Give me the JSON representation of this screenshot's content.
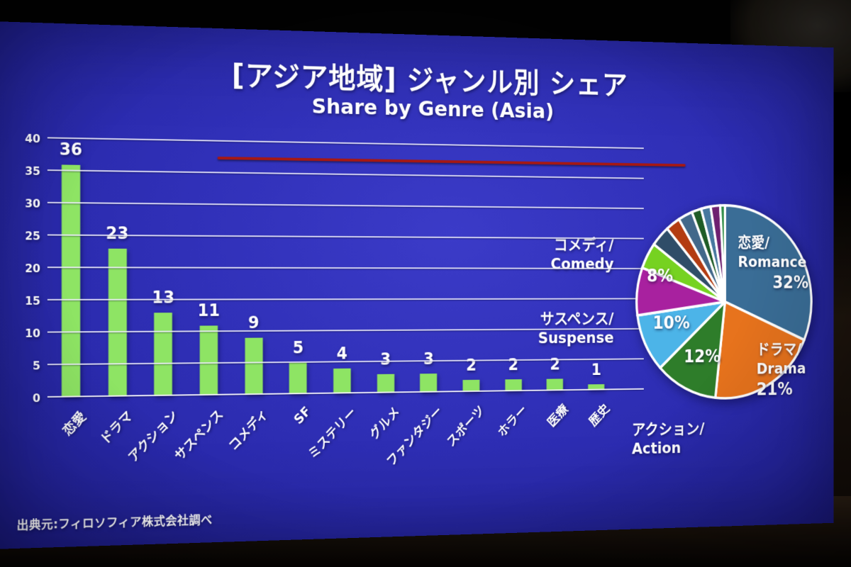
{
  "slide": {
    "title_jp": "[アジア地域] ジャンル別 シェア",
    "title_en": "Share by Genre (Asia)",
    "source": "出典元:フィロソフィア株式会社調べ",
    "colors": {
      "background": "#2f2fb6",
      "bar": "#8ee464",
      "underline": "#a61813",
      "text": "#ffffff"
    }
  },
  "chart_data": [
    {
      "type": "bar",
      "title": "Share by Genre (Asia)",
      "categories": [
        "恋愛",
        "ドラマ",
        "アクション",
        "サスペンス",
        "コメディ",
        "SF",
        "ミステリー",
        "グルメ",
        "ファンタジー",
        "スポーツ",
        "ホラー",
        "医療",
        "歴史"
      ],
      "values": [
        36,
        23,
        13,
        11,
        9,
        5,
        4,
        3,
        3,
        2,
        2,
        2,
        1
      ],
      "ylim": [
        0,
        40
      ],
      "yticks": [
        0,
        5,
        10,
        15,
        20,
        25,
        30,
        35,
        40
      ],
      "grid": true,
      "bar_color": "#8ee464"
    },
    {
      "type": "pie",
      "title": "Share by Genre (Asia)",
      "series": [
        {
          "name": "恋愛/Romance",
          "value": 36,
          "pct": "32%",
          "color": "#3a6d96"
        },
        {
          "name": "ドラマ/Drama",
          "value": 23,
          "pct": "21%",
          "color": "#e7731d"
        },
        {
          "name": "アクション/Action",
          "value": 13,
          "pct": "12%",
          "color": "#2e7d2a"
        },
        {
          "name": "サスペンス/Suspense",
          "value": 11,
          "pct": "10%",
          "color": "#4cb4e8"
        },
        {
          "name": "コメディ/Comedy",
          "value": 9,
          "pct": "8%",
          "color": "#a8219f"
        },
        {
          "name": "SF",
          "value": 5,
          "color": "#76d221"
        },
        {
          "name": "ミステリー",
          "value": 4,
          "color": "#2f4d68"
        },
        {
          "name": "グルメ",
          "value": 3,
          "color": "#b33c12"
        },
        {
          "name": "ファンタジー",
          "value": 3,
          "color": "#42688a"
        },
        {
          "name": "スポーツ",
          "value": 2,
          "color": "#1f5c26"
        },
        {
          "name": "ホラー",
          "value": 2,
          "color": "#46789f"
        },
        {
          "name": "医療",
          "value": 2,
          "color": "#6e2070"
        },
        {
          "name": "歴史",
          "value": 1,
          "color": "#2e8c46"
        }
      ],
      "legend": "none",
      "callouts": {
        "romance_jp": "恋愛/",
        "romance_en": "Romance",
        "romance_pct": "32%",
        "drama_jp": "ドラマ/",
        "drama_en": "Drama",
        "drama_pct": "21%",
        "action_pct": "12%",
        "suspense_pct": "10%",
        "comedy_pct": "8%",
        "comedy_label_jp": "コメディ/",
        "comedy_label_en": "Comedy",
        "suspense_label_jp": "サスペンス/",
        "suspense_label_en": "Suspense",
        "action_label_jp": "アクション/",
        "action_label_en": "Action"
      }
    }
  ]
}
